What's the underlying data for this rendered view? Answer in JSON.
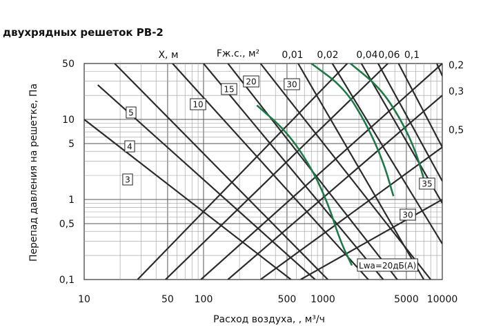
{
  "chart_data": {
    "type": "line",
    "title": "двухрядных решеток РВ-2",
    "xlabel": "Расход воздуха, , м³/ч",
    "ylabel": "Перепад давления на решетке, Па",
    "xscale": "log",
    "yscale": "log",
    "xlim": [
      10,
      10000
    ],
    "ylim": [
      0.1,
      50
    ],
    "x_ticks": [
      {
        "value": 10,
        "label": "10"
      },
      {
        "value": 50,
        "label": "50"
      },
      {
        "value": 100,
        "label": "100"
      },
      {
        "value": 500,
        "label": "500"
      },
      {
        "value": 1000,
        "label": "1000"
      },
      {
        "value": 5000,
        "label": "5000"
      },
      {
        "value": 10000,
        "label": "10000"
      }
    ],
    "y_ticks": [
      {
        "value": 50,
        "label": "50"
      },
      {
        "value": 10,
        "label": "10"
      },
      {
        "value": 5,
        "label": "5"
      },
      {
        "value": 1,
        "label": "1"
      },
      {
        "value": 0.5,
        "label": "0,5"
      },
      {
        "value": 0.1,
        "label": "0,1"
      }
    ],
    "header_x_label": "X, м",
    "header_f_label": "Fж.с., м²",
    "area_labels": [
      {
        "value": 0.01,
        "label": "0,01"
      },
      {
        "value": 0.02,
        "label": "0,02"
      },
      {
        "value": 0.04,
        "label": "0,04"
      },
      {
        "value": 0.06,
        "label": "0,06"
      },
      {
        "value": 0.1,
        "label": "0,1"
      },
      {
        "value": 0.2,
        "label": "0,2"
      },
      {
        "value": 0.3,
        "label": "0,3"
      },
      {
        "value": 0.5,
        "label": "0,5"
      }
    ],
    "pressure_lines": [
      {
        "area": 0.01,
        "x": [
          620,
          7000
        ],
        "y": [
          50,
          0.1
        ]
      },
      {
        "area": 0.02,
        "x": [
          1200,
          10000
        ],
        "y": [
          50,
          0.28
        ]
      },
      {
        "area": 0.04,
        "x": [
          2100,
          10000
        ],
        "y": [
          50,
          0.9
        ]
      },
      {
        "area": 0.06,
        "x": [
          2900,
          10000
        ],
        "y": [
          50,
          1.7
        ]
      },
      {
        "area": 0.1,
        "x": [
          4300,
          10000
        ],
        "y": [
          50,
          4.5
        ]
      },
      {
        "area": 0.2,
        "x": [
          9000,
          10000
        ],
        "y": [
          50,
          35
        ]
      },
      {
        "area": 0.3,
        "x": [
          160,
          10000
        ],
        "y": [
          0.1,
          20
        ]
      },
      {
        "area": 0.5,
        "x": [
          300,
          10000
        ],
        "y": [
          0.1,
          4.5
        ]
      },
      {
        "area": null,
        "x": [
          95,
          10000
        ],
        "y": [
          0.1,
          50
        ]
      },
      {
        "area": null,
        "x": [
          48,
          3500
        ],
        "y": [
          0.1,
          50
        ]
      },
      {
        "area": null,
        "x": [
          28,
          1600
        ],
        "y": [
          0.1,
          50
        ]
      },
      {
        "area": null,
        "x": [
          650,
          10000
        ],
        "y": [
          0.1,
          1.0
        ]
      }
    ],
    "throw_lines": [
      {
        "label": "3",
        "x": [
          10,
          540
        ],
        "y": [
          10,
          0.1
        ]
      },
      {
        "label": "4",
        "x": [
          13,
          860
        ],
        "y": [
          27,
          0.1
        ]
      },
      {
        "label": "5",
        "x": [
          18,
          1100
        ],
        "y": [
          50,
          0.1
        ]
      },
      {
        "label": "10",
        "x": [
          55,
          2400
        ],
        "y": [
          50,
          0.1
        ]
      },
      {
        "label": "15",
        "x": [
          100,
          3200
        ],
        "y": [
          50,
          0.1
        ]
      },
      {
        "label": "20",
        "x": [
          160,
          4200
        ],
        "y": [
          50,
          0.1
        ]
      },
      {
        "label": "30",
        "x": [
          300,
          8000
        ],
        "y": [
          50,
          0.1
        ]
      }
    ],
    "noise_curves": [
      {
        "label": "20",
        "points": [
          [
            280,
            15
          ],
          [
            500,
            7
          ],
          [
            800,
            2.5
          ],
          [
            1100,
            0.9
          ],
          [
            1400,
            0.3
          ],
          [
            1750,
            0.15
          ]
        ]
      },
      {
        "label": "30",
        "points": [
          [
            800,
            50
          ],
          [
            1500,
            25
          ],
          [
            2300,
            9
          ],
          [
            3200,
            3
          ],
          [
            3900,
            1.1
          ]
        ]
      },
      {
        "label": "35",
        "points": [
          [
            1700,
            50
          ],
          [
            3000,
            25
          ],
          [
            4500,
            10
          ],
          [
            6000,
            4
          ],
          [
            7000,
            1.8
          ]
        ]
      }
    ],
    "noise_label": "Lwa=20дБ(А)",
    "colors": {
      "lines": "#2b2b2b",
      "noise": "#1e7a45",
      "grid": "#9a9a9a"
    }
  }
}
